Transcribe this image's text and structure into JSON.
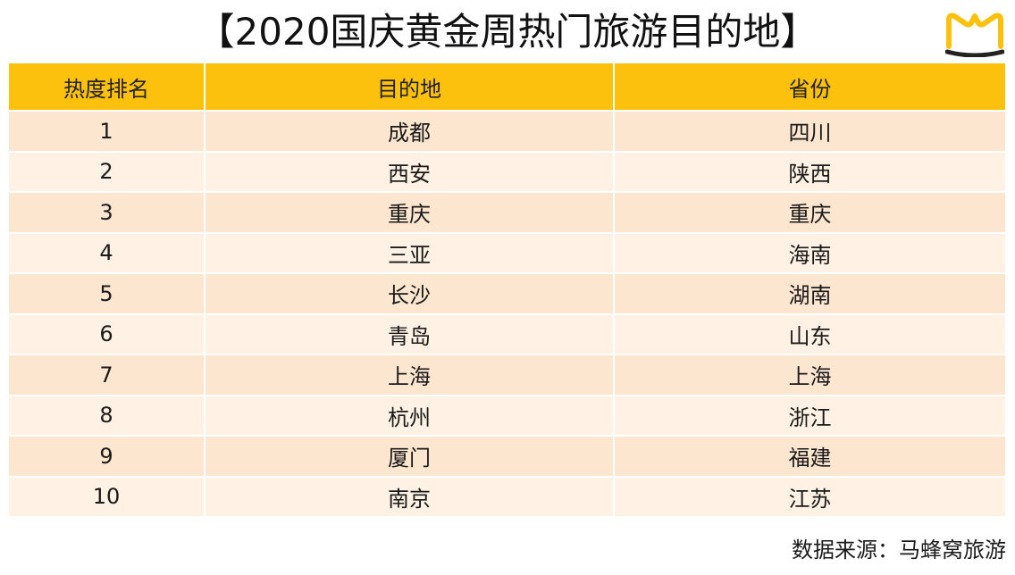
{
  "title": "【2020国庆黄金周热门旅游目的地】",
  "brand_color": "#fcc10d",
  "table": {
    "headers": [
      "热度排名",
      "目的地",
      "省份"
    ],
    "rows": [
      {
        "rank": "1",
        "destination": "成都",
        "province": "四川"
      },
      {
        "rank": "2",
        "destination": "西安",
        "province": "陕西"
      },
      {
        "rank": "3",
        "destination": "重庆",
        "province": "重庆"
      },
      {
        "rank": "4",
        "destination": "三亚",
        "province": "海南"
      },
      {
        "rank": "5",
        "destination": "长沙",
        "province": "湖南"
      },
      {
        "rank": "6",
        "destination": "青岛",
        "province": "山东"
      },
      {
        "rank": "7",
        "destination": "上海",
        "province": "上海"
      },
      {
        "rank": "8",
        "destination": "杭州",
        "province": "浙江"
      },
      {
        "rank": "9",
        "destination": "厦门",
        "province": "福建"
      },
      {
        "rank": "10",
        "destination": "南京",
        "province": "江苏"
      }
    ]
  },
  "footer": {
    "source": "数据来源：马蜂窝旅游"
  },
  "logo": {
    "icon": "mafengwo-logo-icon"
  }
}
